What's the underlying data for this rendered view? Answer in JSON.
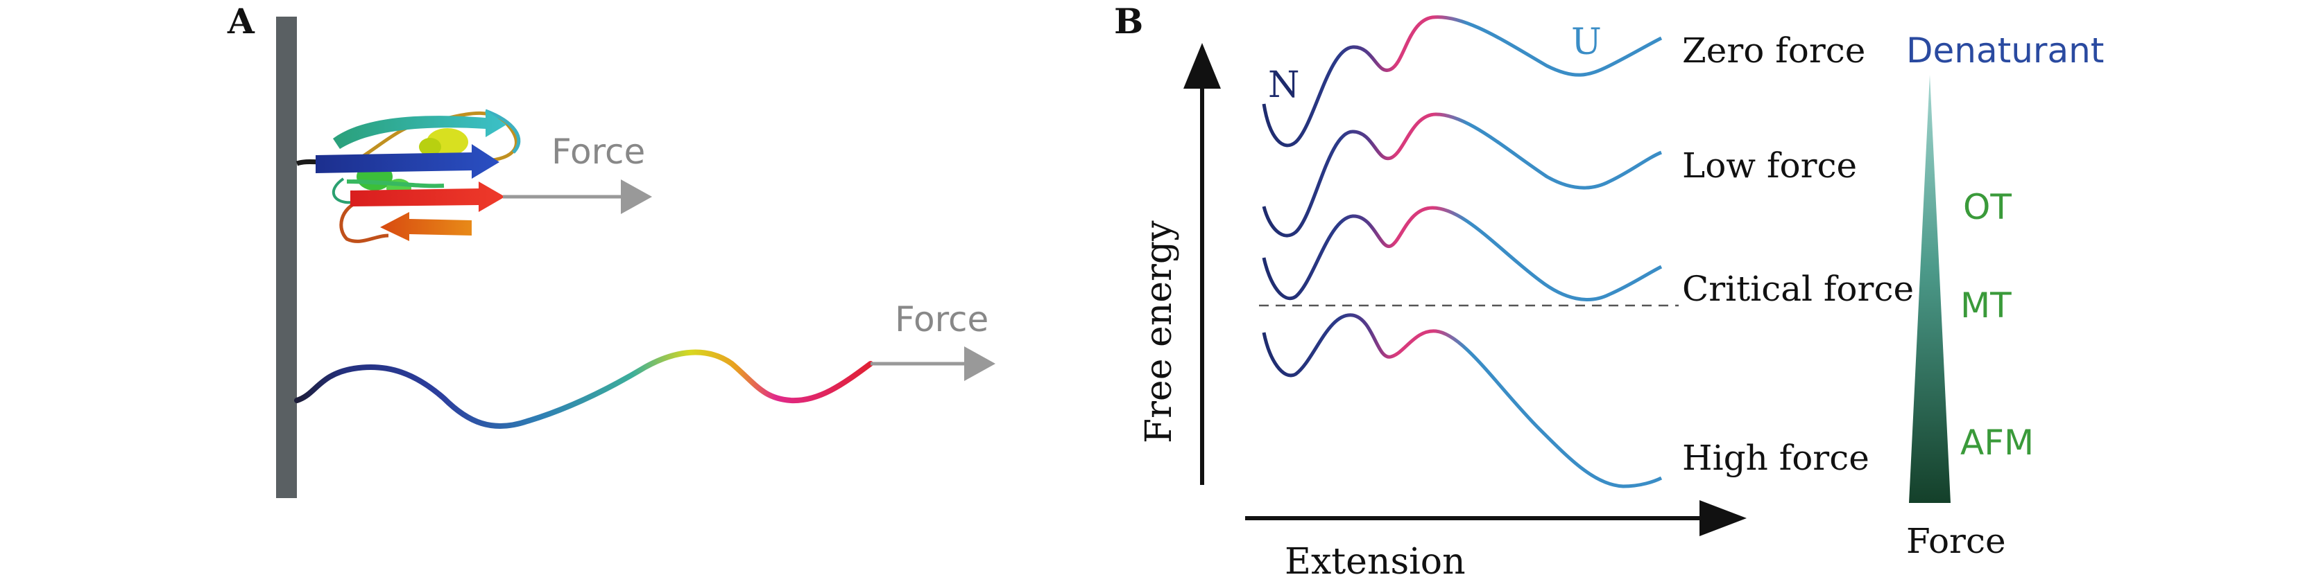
{
  "panel_a": {
    "letter": "A",
    "force_label_top": "Force",
    "force_label_bottom": "Force"
  },
  "panel_b": {
    "letter": "B",
    "state_native": "N",
    "state_unfolded": "U",
    "y_axis_label": "Free energy",
    "x_axis_label": "Extension",
    "curve_labels": [
      "Zero force",
      "Low force",
      "Critical force",
      "High force"
    ],
    "wedge_top_label": "Denaturant",
    "wedge_bottom_label": "Force",
    "techniques": [
      "OT",
      "MT",
      "AFM"
    ]
  },
  "colors": {
    "wall": "#5a6063",
    "arrow_grey": "#999999",
    "native_color": "#1d2a6b",
    "barrier_color": "#d83a7c",
    "unfolded_color": "#3a8dc6",
    "wedge_top": "#8ec9c2",
    "wedge_bottom": "#17452a"
  }
}
